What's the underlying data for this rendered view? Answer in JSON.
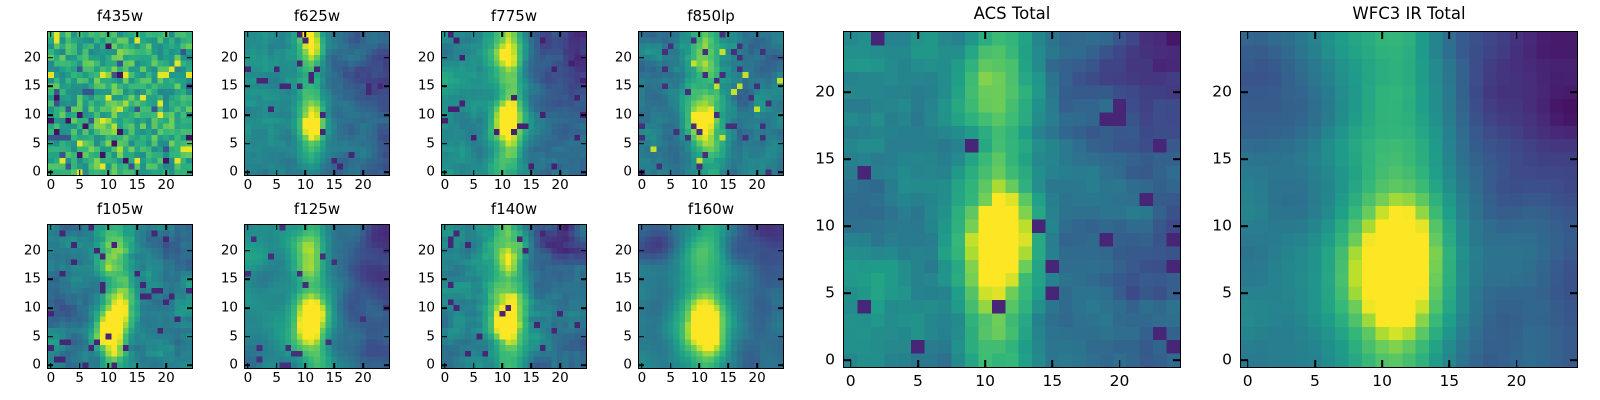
{
  "figure": {
    "background_color": "#ffffff",
    "frame_color": "#000000",
    "text_color": "#000000"
  },
  "chart_data": {
    "type": "heatmap",
    "colormap": "viridis",
    "colormap_stops": [
      {
        "t": 0.0,
        "color": "#440154"
      },
      {
        "t": 0.125,
        "color": "#482878"
      },
      {
        "t": 0.25,
        "color": "#3e4989"
      },
      {
        "t": 0.375,
        "color": "#31688e"
      },
      {
        "t": 0.5,
        "color": "#26828e"
      },
      {
        "t": 0.625,
        "color": "#1f9e89"
      },
      {
        "t": 0.75,
        "color": "#35b779"
      },
      {
        "t": 0.875,
        "color": "#6dcd59"
      },
      {
        "t": 0.9375,
        "color": "#b4de2c"
      },
      {
        "t": 1.0,
        "color": "#fde725"
      }
    ],
    "grid_size": 25,
    "x_range": [
      -0.5,
      24.5
    ],
    "y_range": [
      -0.5,
      24.5
    ],
    "x_ticks": [
      0,
      5,
      10,
      15,
      20
    ],
    "y_ticks": [
      0,
      5,
      10,
      15,
      20
    ],
    "data_note": "Each panel is a 25x25 noisy astronomical cutout of a vertically elongated source centered near x=11 with a bright core near y=7-9; pixel fields are reconstructed procedurally from these morphology parameters.",
    "panels": [
      {
        "title": "f435w",
        "seed": 11,
        "base": 0.7,
        "noise": 0.18,
        "smooth": 0,
        "gradx": 0,
        "cx": 11,
        "sigx": 2.0,
        "col_amp": 0.05,
        "blob": {
          "y": 9,
          "sig": 3.0,
          "amp": 0.06
        },
        "top": {
          "y": 23,
          "sig": 3.0,
          "amp": 0
        },
        "corners": [],
        "speckles": [
          {
            "p": 0.05,
            "val": 0.98
          },
          {
            "p": 0.04,
            "val": 0.3
          },
          {
            "p": 0.025,
            "val": 0.05
          }
        ]
      },
      {
        "title": "f625w",
        "seed": 22,
        "base": 0.46,
        "noise": 0.11,
        "smooth": 1,
        "gradx": -0.1,
        "cx": 11,
        "sigx": 1.7,
        "col_amp": 0.18,
        "blob": {
          "y": 8.5,
          "sig": 2.8,
          "amp": 0.52
        },
        "top": {
          "y": 23,
          "sig": 3.2,
          "amp": 0.42
        },
        "corners": [
          {
            "x": 22,
            "y": 17,
            "sig": 4.0,
            "amp": -0.12
          }
        ],
        "speckles": [
          {
            "p": 0.03,
            "val": 0.12
          }
        ]
      },
      {
        "title": "f775w",
        "seed": 33,
        "base": 0.45,
        "noise": 0.11,
        "smooth": 1,
        "gradx": -0.1,
        "cx": 11,
        "sigx": 2.0,
        "col_amp": 0.25,
        "blob": {
          "y": 8.5,
          "sig": 3.0,
          "amp": 0.5
        },
        "top": {
          "y": 21,
          "sig": 3.5,
          "amp": 0.38
        },
        "corners": [
          {
            "x": 21,
            "y": 20,
            "sig": 4.5,
            "amp": -0.18
          }
        ],
        "speckles": [
          {
            "p": 0.035,
            "val": 0.1
          }
        ]
      },
      {
        "title": "f850lp",
        "seed": 44,
        "base": 0.46,
        "noise": 0.14,
        "smooth": 1,
        "gradx": 0,
        "cx": 11,
        "sigx": 2.2,
        "col_amp": 0.2,
        "blob": {
          "y": 8.5,
          "sig": 3.2,
          "amp": 0.45
        },
        "top": {
          "y": 21,
          "sig": 4.0,
          "amp": 0.25
        },
        "corners": [],
        "speckles": [
          {
            "p": 0.05,
            "val": 0.15
          },
          {
            "p": 0.03,
            "val": 0.95
          }
        ]
      },
      {
        "title": "f105w",
        "seed": 55,
        "base": 0.5,
        "noise": 0.16,
        "smooth": 1,
        "gradx": 0,
        "cx": 11,
        "sigx": 2.0,
        "col_amp": 0.2,
        "blob": {
          "y": 7,
          "sig": 3.8,
          "amp": 0.5
        },
        "top": {
          "y": 19,
          "sig": 3.0,
          "amp": 0.22
        },
        "corners": [
          {
            "x": 2,
            "y": 10,
            "sig": 2.5,
            "amp": -0.2
          },
          {
            "x": 20,
            "y": 21,
            "sig": 3.0,
            "amp": -0.15
          }
        ],
        "speckles": [
          {
            "p": 0.05,
            "val": 0.12
          }
        ]
      },
      {
        "title": "f125w",
        "seed": 66,
        "base": 0.47,
        "noise": 0.11,
        "smooth": 2,
        "gradx": -0.12,
        "cx": 11,
        "sigx": 2.2,
        "col_amp": 0.22,
        "blob": {
          "y": 7.5,
          "sig": 3.2,
          "amp": 0.55
        },
        "top": {
          "y": 20,
          "sig": 3.5,
          "amp": 0.18
        },
        "corners": [
          {
            "x": 22,
            "y": 19,
            "sig": 4.0,
            "amp": -0.2
          }
        ],
        "speckles": [
          {
            "p": 0.02,
            "val": 0.15
          }
        ]
      },
      {
        "title": "f140w",
        "seed": 77,
        "base": 0.47,
        "noise": 0.13,
        "smooth": 1,
        "gradx": -0.06,
        "cx": 11,
        "sigx": 2.2,
        "col_amp": 0.24,
        "blob": {
          "y": 8,
          "sig": 3.2,
          "amp": 0.5
        },
        "top": {
          "y": 20,
          "sig": 3.5,
          "amp": 0.26
        },
        "corners": [
          {
            "x": 20,
            "y": 22,
            "sig": 3.5,
            "amp": -0.28
          }
        ],
        "speckles": [
          {
            "p": 0.03,
            "val": 0.12
          }
        ]
      },
      {
        "title": "f160w",
        "seed": 88,
        "base": 0.44,
        "noise": 0.09,
        "smooth": 2,
        "gradx": -0.05,
        "cx": 11,
        "sigx": 2.8,
        "col_amp": 0.22,
        "blob": {
          "y": 7,
          "sig": 3.8,
          "amp": 0.55
        },
        "top": {
          "y": 20,
          "sig": 4.0,
          "amp": 0.12
        },
        "corners": [
          {
            "x": 1,
            "y": 22,
            "sig": 3.5,
            "amp": -0.25
          },
          {
            "x": 23,
            "y": 23,
            "sig": 4.0,
            "amp": -0.22
          }
        ],
        "speckles": []
      },
      {
        "title": "ACS Total",
        "seed": 99,
        "base": 0.44,
        "noise": 0.12,
        "smooth": 1,
        "gradx": -0.1,
        "cx": 11,
        "sigx": 2.0,
        "col_amp": 0.34,
        "blob": {
          "y": 8.5,
          "sig": 3.0,
          "amp": 0.42
        },
        "top": {
          "y": 22,
          "sig": 4.0,
          "amp": 0.1
        },
        "corners": [
          {
            "x": 23,
            "y": 22,
            "sig": 4.0,
            "amp": -0.15
          },
          {
            "x": 0,
            "y": 12,
            "sig": 2.5,
            "amp": -0.12
          }
        ],
        "speckles": [
          {
            "p": 0.04,
            "val": 0.12
          }
        ]
      },
      {
        "title": "WFC3 IR Total",
        "seed": 110,
        "base": 0.4,
        "noise": 0.07,
        "smooth": 2,
        "gradx": -0.08,
        "cx": 11,
        "sigx": 3.0,
        "col_amp": 0.3,
        "blob": {
          "y": 7,
          "sig": 4.0,
          "amp": 0.5
        },
        "top": {
          "y": 24,
          "sig": 5.0,
          "amp": 0.05
        },
        "corners": [
          {
            "x": 22,
            "y": 22,
            "sig": 5.0,
            "amp": -0.28
          },
          {
            "x": 1,
            "y": 23,
            "sig": 3.0,
            "amp": -0.12
          },
          {
            "x": 0,
            "y": 18,
            "sig": 3.0,
            "amp": -0.1
          }
        ],
        "speckles": []
      }
    ]
  }
}
